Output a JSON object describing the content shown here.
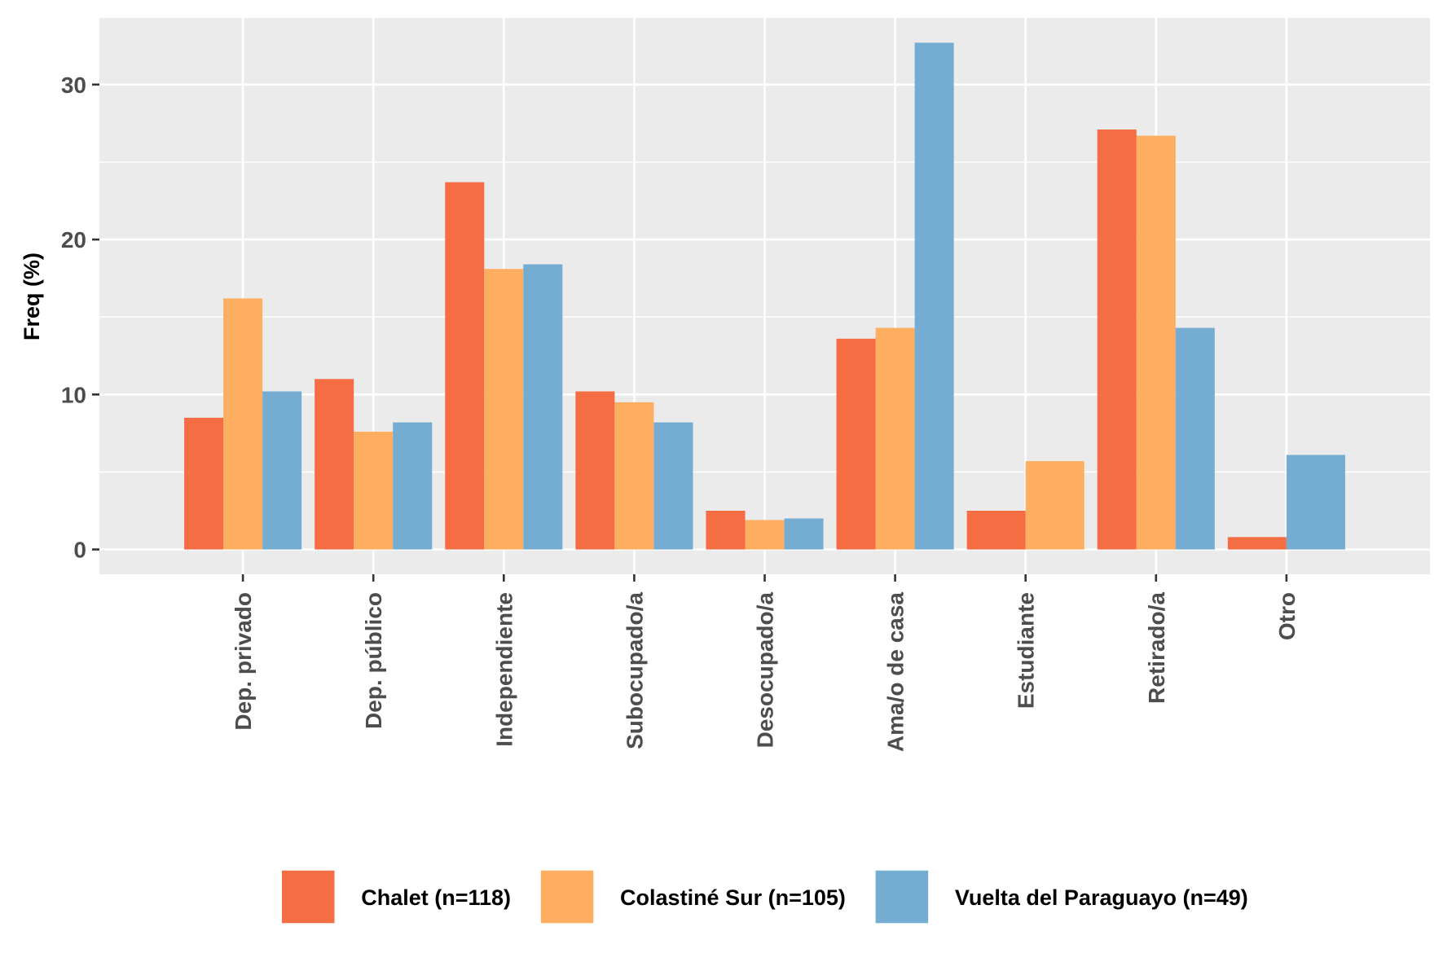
{
  "chart_data": {
    "type": "bar",
    "title": "",
    "xlabel": "",
    "ylabel": "Freq (%)",
    "ylim": [
      -1.6,
      34.3
    ],
    "yticks": [
      0,
      10,
      20,
      30
    ],
    "grid": true,
    "legend_position": "bottom",
    "categories": [
      "Dep. privado",
      "Dep. público",
      "Independiente",
      "Subocupado/a",
      "Desocupado/a",
      "Ama/o de casa",
      "Estudiante",
      "Retirado/a",
      "Otro"
    ],
    "series": [
      {
        "name": "Chalet (n=118)",
        "color": "#F46D43",
        "values": [
          8.5,
          11.0,
          23.7,
          10.2,
          2.5,
          13.6,
          2.5,
          27.1,
          0.8
        ]
      },
      {
        "name": "Colastiné Sur (n=105)",
        "color": "#FDAE61",
        "values": [
          16.2,
          7.6,
          18.1,
          9.5,
          1.9,
          14.3,
          5.7,
          26.7,
          null
        ]
      },
      {
        "name": "Vuelta del Paraguayo (n=49)",
        "color": "#74ADD1",
        "values": [
          10.2,
          8.2,
          18.4,
          8.2,
          2.0,
          32.7,
          null,
          14.3,
          6.1
        ]
      }
    ],
    "panel_color": "#EBEBEB",
    "grid_color": "#FFFFFF"
  }
}
